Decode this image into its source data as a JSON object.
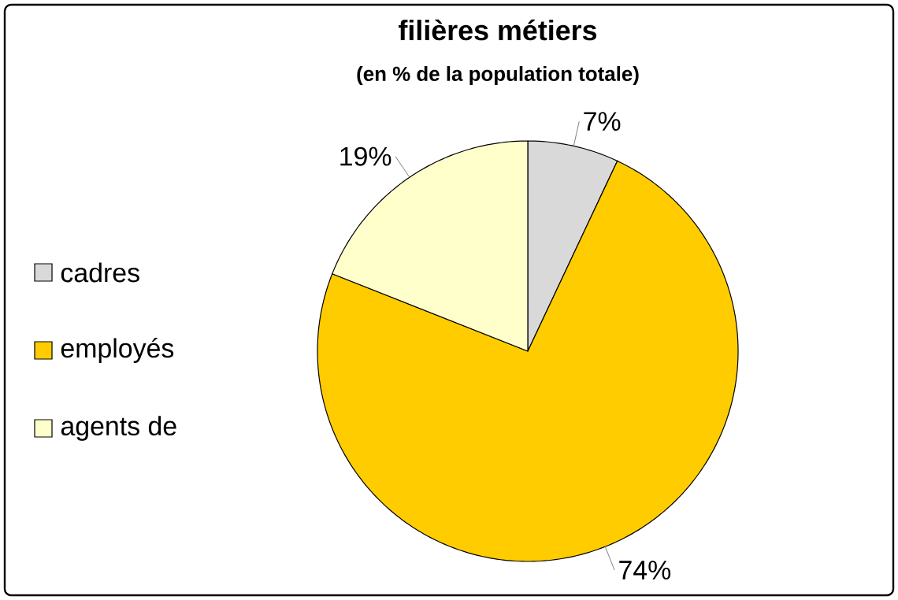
{
  "chart_data": {
    "type": "pie",
    "title": "filières métiers",
    "subtitle": "(en % de la population totale)",
    "categories": [
      "cadres",
      "employés",
      "agents de"
    ],
    "values": [
      7,
      74,
      19
    ],
    "colors": [
      "#d9d9d9",
      "#ffcc00",
      "#ffffcc"
    ],
    "value_labels": [
      "7%",
      "74%",
      "19%"
    ],
    "legend": "left"
  }
}
